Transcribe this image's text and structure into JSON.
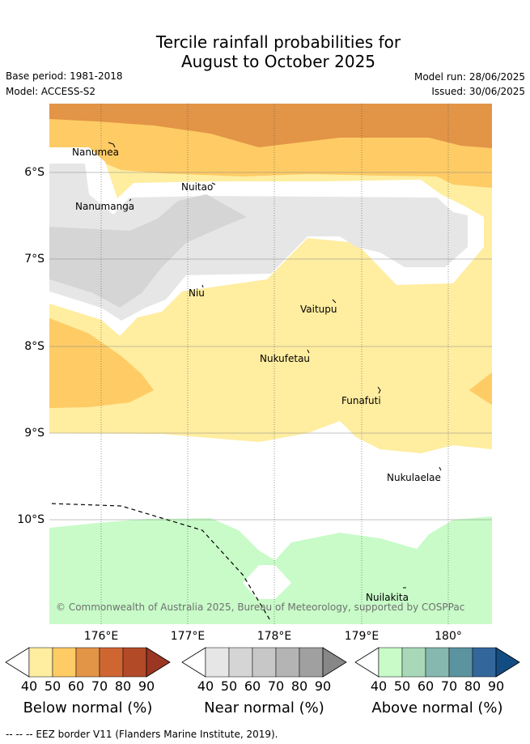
{
  "title": {
    "line1": "Tercile rainfall probabilities for",
    "line2": "August to October 2025"
  },
  "meta": {
    "base_period": "Base period: 1981-2018",
    "model": "Model: ACCESS-S2",
    "model_run": "Model run: 28/06/2025",
    "issued": "Issued: 30/06/2025"
  },
  "axes": {
    "lat_labels": [
      "6°S",
      "7°S",
      "8°S",
      "9°S",
      "10°S"
    ],
    "lon_labels": [
      "176°E",
      "177°E",
      "178°E",
      "179°E",
      "180°"
    ]
  },
  "places": {
    "nanumea": "Nanumea",
    "nuitao": "Nuitao",
    "nanumanga": "Nanumanga",
    "niu": "Niu",
    "vaitupu": "Vaitupu",
    "nukufetau": "Nukufetau",
    "funafuti": "Funafuti",
    "nukulaelae": "Nukulaelae",
    "nuilakita": "Nuilakita"
  },
  "copyright": "© Commonwealth of Australia 2025, Bureau of Meteorology, supported by COSPPac",
  "legend": {
    "tick_labels": [
      "40",
      "50",
      "60",
      "70",
      "80",
      "90"
    ],
    "below": {
      "label": "Below normal (%)",
      "colors": [
        "#ffffff",
        "#ffeda0",
        "#fecb65",
        "#e29447",
        "#cf6632",
        "#b24a28",
        "#9b3623"
      ]
    },
    "near": {
      "label": "Near normal (%)",
      "colors": [
        "#ffffff",
        "#e6e6e6",
        "#d5d5d5",
        "#c7c7c7",
        "#b4b4b4",
        "#a0a0a0",
        "#878787"
      ]
    },
    "above": {
      "label": "Above normal (%)",
      "colors": [
        "#ffffff",
        "#c8fbc8",
        "#a8d8b8",
        "#86b8b0",
        "#5b93a0",
        "#33669a",
        "#134c82"
      ]
    }
  },
  "footnote": "-- -- -- EEZ border V11 (Flanders Marine Institute, 2019)."
}
